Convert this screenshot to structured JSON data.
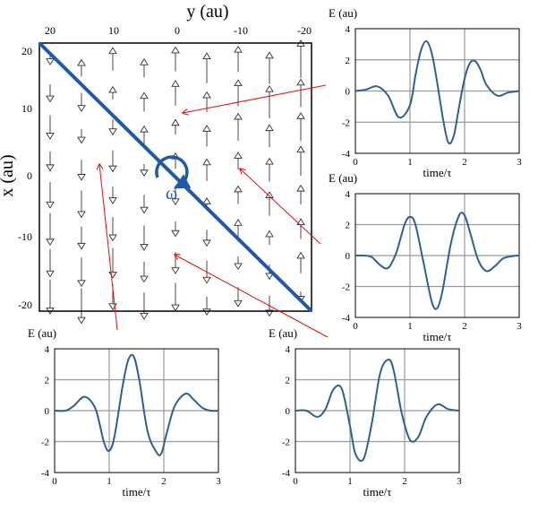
{
  "colors": {
    "diagonal": "#1f5aa6",
    "curve": "#2f5f93",
    "arrow_red": "#dd1111",
    "grid": "#9a9a9a"
  },
  "field_map": {
    "xlabel": "y (au)",
    "ylabel": "x (au)",
    "omega_label": "ω",
    "top_ticks": [
      "20",
      "10",
      "0",
      "-10",
      "-20"
    ],
    "left_ticks": [
      "20",
      "10",
      "0",
      "-10",
      "-20"
    ],
    "xlim": [
      20,
      -20
    ],
    "ylim": [
      -20,
      20
    ]
  },
  "chart_data": [
    {
      "type": "line",
      "ylabel": "E (au)",
      "xlabel": "time/τ",
      "xlim": [
        0,
        3
      ],
      "ylim": [
        -4,
        4
      ],
      "xticks": [
        "0",
        "1",
        "2",
        "3"
      ],
      "yticks": [
        "4",
        "2",
        "0",
        "-2",
        "-4"
      ],
      "x": [
        0,
        0.2,
        0.4,
        0.6,
        0.8,
        1.0,
        1.1,
        1.2,
        1.3,
        1.4,
        1.5,
        1.6,
        1.7,
        1.8,
        1.9,
        2.0,
        2.1,
        2.2,
        2.3,
        2.4,
        2.6,
        2.8,
        3.0
      ],
      "y": [
        0,
        0.1,
        0.3,
        -0.3,
        -1.7,
        -0.9,
        1.0,
        2.6,
        3.2,
        2.4,
        0.5,
        -1.7,
        -3.3,
        -2.9,
        -1.0,
        0.8,
        1.8,
        1.9,
        1.3,
        0.4,
        -0.3,
        -0.1,
        0
      ]
    },
    {
      "type": "line",
      "ylabel": "E (au)",
      "xlabel": "time/τ",
      "xlim": [
        0,
        3
      ],
      "ylim": [
        -4,
        4
      ],
      "xticks": [
        "0",
        "1",
        "2",
        "3"
      ],
      "yticks": [
        "4",
        "2",
        "0",
        "-2",
        "-4"
      ],
      "x": [
        0,
        0.15,
        0.3,
        0.45,
        0.6,
        0.75,
        0.9,
        1.0,
        1.1,
        1.25,
        1.4,
        1.5,
        1.6,
        1.75,
        1.9,
        2.0,
        2.1,
        2.25,
        2.4,
        2.55,
        2.7,
        2.85,
        3.0
      ],
      "y": [
        0,
        0,
        -0.1,
        -0.6,
        -0.8,
        0.2,
        2.0,
        2.5,
        2.0,
        -0.5,
        -3.0,
        -3.4,
        -2.2,
        0.8,
        2.6,
        2.6,
        1.5,
        -0.3,
        -1.0,
        -0.7,
        -0.2,
        -0.05,
        0
      ]
    },
    {
      "type": "line",
      "ylabel": "E (au)",
      "xlabel": "time/τ",
      "xlim": [
        0,
        3
      ],
      "ylim": [
        -4,
        4
      ],
      "xticks": [
        "0",
        "1",
        "2",
        "3"
      ],
      "yticks": [
        "4",
        "2",
        "0",
        "-2",
        "-4"
      ],
      "x": [
        0,
        0.2,
        0.35,
        0.55,
        0.75,
        0.9,
        1.0,
        1.1,
        1.25,
        1.35,
        1.45,
        1.55,
        1.7,
        1.85,
        1.95,
        2.05,
        2.2,
        2.4,
        2.55,
        2.7,
        2.85,
        3.0
      ],
      "y": [
        0,
        0,
        0.3,
        0.9,
        0.1,
        -2.0,
        -2.6,
        -1.6,
        1.7,
        3.3,
        3.5,
        2.0,
        -1.3,
        -2.6,
        -2.8,
        -1.5,
        0.3,
        1.1,
        0.7,
        0.2,
        0,
        0
      ]
    },
    {
      "type": "line",
      "ylabel": "E (au)",
      "xlabel": "time/τ",
      "xlim": [
        0,
        3
      ],
      "ylim": [
        -4,
        4
      ],
      "xticks": [
        "0",
        "1",
        "2",
        "3"
      ],
      "yticks": [
        "4",
        "2",
        "0",
        "-2",
        "-4"
      ],
      "x": [
        0,
        0.2,
        0.4,
        0.55,
        0.7,
        0.85,
        1.0,
        1.1,
        1.25,
        1.4,
        1.55,
        1.7,
        1.8,
        1.95,
        2.1,
        2.25,
        2.4,
        2.6,
        2.8,
        3.0
      ],
      "y": [
        0,
        0,
        -0.4,
        0.1,
        1.4,
        1.4,
        -1.0,
        -2.8,
        -3.1,
        -0.8,
        2.4,
        3.3,
        2.6,
        -0.2,
        -1.9,
        -1.7,
        -0.4,
        0.4,
        0.1,
        0
      ]
    }
  ]
}
